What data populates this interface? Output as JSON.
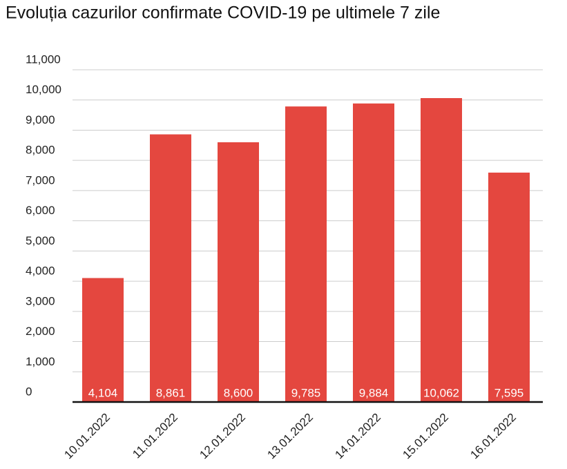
{
  "chart_data": {
    "type": "bar",
    "title": "Evoluția cazurilor confirmate COVID-19 pe ultimele 7 zile",
    "categories": [
      "10.01.2022",
      "11.01.2022",
      "12.01.2022",
      "13.01.2022",
      "14.01.2022",
      "15.01.2022",
      "16.01.2022"
    ],
    "values": [
      4104,
      8861,
      8600,
      9785,
      9884,
      10062,
      7595
    ],
    "value_labels": [
      "4,104",
      "8,861",
      "8,600",
      "9,785",
      "9,884",
      "10,062",
      "7,595"
    ],
    "color": "#e4473f",
    "ylim": [
      0,
      11000
    ],
    "yticks": [
      0,
      {
        "value": 1000,
        "label": "1,000"
      },
      {
        "value": 2000,
        "label": "2,000"
      },
      {
        "value": 3000,
        "label": "3,000"
      },
      {
        "value": 4000,
        "label": "4,000"
      },
      {
        "value": 5000,
        "label": "5,000"
      },
      {
        "value": 6000,
        "label": "6,000"
      },
      {
        "value": 7000,
        "label": "7,000"
      },
      {
        "value": 8000,
        "label": "8,000"
      },
      {
        "value": 9000,
        "label": "9,000"
      },
      {
        "value": 10000,
        "label": "10,000"
      },
      {
        "value": 11000,
        "label": "11,000"
      }
    ],
    "grid": true
  }
}
